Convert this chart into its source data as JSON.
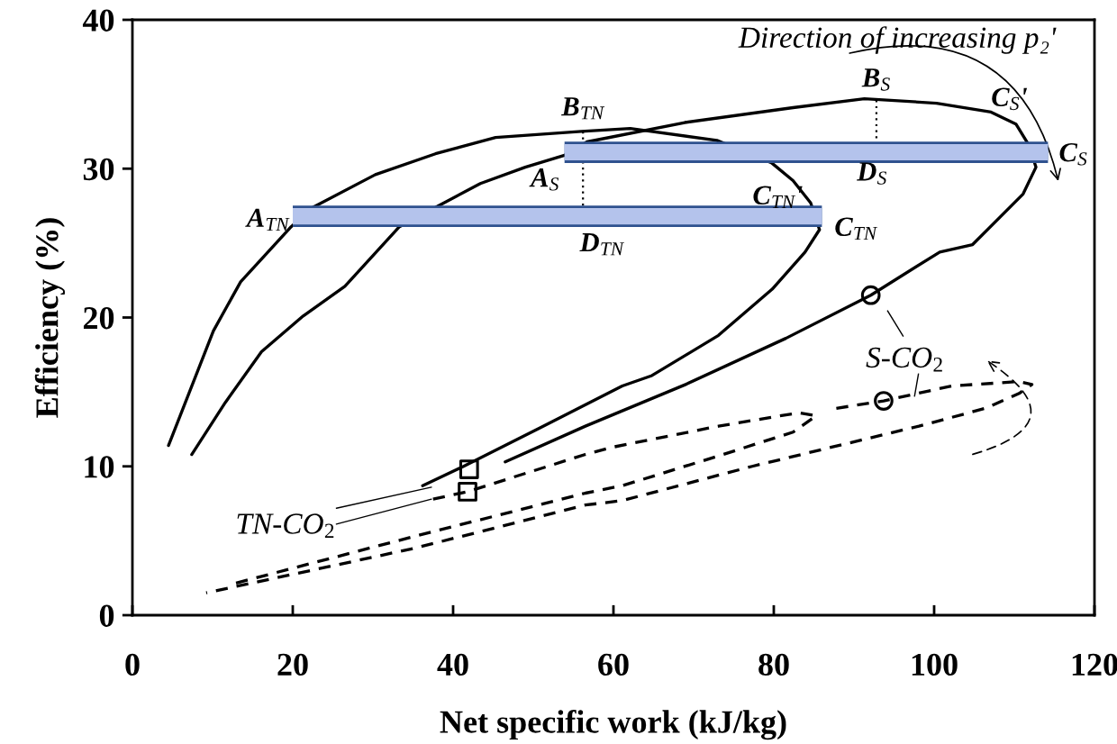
{
  "chart_data": {
    "type": "line",
    "xlabel": "Net specific work (kJ/kg)",
    "ylabel": "Efficiency (%)",
    "xlim": [
      0,
      120
    ],
    "ylim": [
      0,
      40
    ],
    "xticks": [
      0,
      20,
      40,
      60,
      80,
      100,
      120
    ],
    "yticks": [
      0,
      10,
      20,
      30,
      40
    ],
    "grid": false,
    "legend": false,
    "series": [
      {
        "color": "#000000",
        "line_style": "solid",
        "x": [
          4.5,
          10.1,
          13.5,
          19.8,
          22.5,
          30.3,
          37.8,
          45.3,
          56.0,
          62.1,
          72.9,
          79.7,
          82.4,
          84.6,
          85.7,
          83.9,
          79.8,
          73.1,
          64.8,
          61.1,
          50.9,
          41.3,
          36.2
        ],
        "values": [
          11.4,
          19.1,
          22.4,
          26.1,
          27.4,
          29.6,
          31.0,
          32.1,
          32.5,
          32.7,
          31.9,
          30.4,
          29.2,
          27.7,
          25.9,
          24.4,
          21.9,
          18.8,
          16.1,
          15.4,
          12.6,
          10.0,
          8.7
        ]
      },
      {
        "color": "#000000",
        "line_style": "solid",
        "x": [
          7.4,
          11.6,
          16.1,
          21.3,
          26.5,
          33.3,
          37.8,
          43.4,
          49.0,
          53.9,
          56.7,
          68.9,
          82.4,
          91.3,
          100.3,
          107.1,
          110.2,
          111.8,
          112.7,
          111.1,
          104.8,
          100.7,
          92.1,
          81.5,
          69.0,
          56.5,
          46.5
        ],
        "values": [
          10.8,
          14.3,
          17.7,
          20.1,
          22.1,
          26.1,
          27.4,
          29.0,
          30.1,
          30.9,
          31.8,
          33.1,
          34.1,
          34.7,
          34.4,
          33.8,
          33.0,
          31.6,
          30.1,
          28.3,
          24.9,
          24.4,
          21.5,
          18.6,
          15.5,
          12.7,
          10.3
        ]
      },
      {
        "color": "#000000",
        "line_style": "dashed",
        "x": [
          37.5,
          41.8,
          56.5,
          60.0,
          73.1,
          83.1,
          85.3,
          82.4,
          73.1,
          61.1,
          56.5,
          35.2,
          12.5
        ],
        "values": [
          7.8,
          8.3,
          10.8,
          11.3,
          12.7,
          13.6,
          13.4,
          12.3,
          10.7,
          8.7,
          8.2,
          5.3,
          2.1
        ]
      },
      {
        "color": "#000000",
        "line_style": "dashed",
        "x": [
          87.8,
          93.7,
          102.2,
          110.6,
          112.2,
          110.6,
          106.4,
          98.1,
          77.3,
          61.1,
          56.5,
          35.2,
          9.2
        ],
        "values": [
          13.9,
          14.4,
          15.4,
          15.7,
          15.5,
          14.9,
          13.9,
          12.7,
          10.0,
          7.7,
          7.4,
          4.5,
          1.5
        ]
      },
      {
        "color": "#000000",
        "line_style": "dotted",
        "x": [
          56.2,
          56.2
        ],
        "values": [
          32.5,
          27.3
        ]
      },
      {
        "color": "#000000",
        "line_style": "dotted",
        "x": [
          92.8,
          92.8
        ],
        "values": [
          34.6,
          31.8
        ]
      },
      {
        "color": "#b4c3ec",
        "x": [
          20.0,
          86.0
        ],
        "values": [
          26.8,
          26.8
        ]
      },
      {
        "color": "#b4c3ec",
        "x": [
          53.9,
          114.2
        ],
        "values": [
          31.1,
          31.1
        ]
      },
      {
        "type": "scatter",
        "marker": "square",
        "color": "#000000",
        "x": [
          42.0,
          41.8
        ],
        "values": [
          9.8,
          8.3
        ]
      },
      {
        "type": "scatter",
        "marker": "circle",
        "color": "#000000",
        "x": [
          92.1,
          93.7
        ],
        "values": [
          21.5,
          14.4
        ]
      }
    ],
    "annotations": [
      "A$_{TN}$",
      {
        "text": "B$_{TN}$",
        "x": 56.2,
        "y": 32.5
      },
      {
        "text": "C$_{TN}$'",
        "x": 84.6,
        "y": 27.7
      },
      "C$_{TN}$",
      "D$_{TN}$",
      {
        "text": "A$_{S}$",
        "x": 53.9,
        "y": 30.9
      },
      {
        "text": "B$_{S}$",
        "x": 92.8,
        "y": 34.6
      },
      {
        "text": "C$_{S}$'",
        "x": 107.1,
        "y": 33.8
      },
      "C$_{S}$",
      "D$_{S}$",
      "Direction of increasing p₂'",
      {
        "text": "TN-CO$_{2}$",
        "x": 37.5,
        "y": 7.8
      },
      "S-CO$_{2}$"
    ]
  }
}
